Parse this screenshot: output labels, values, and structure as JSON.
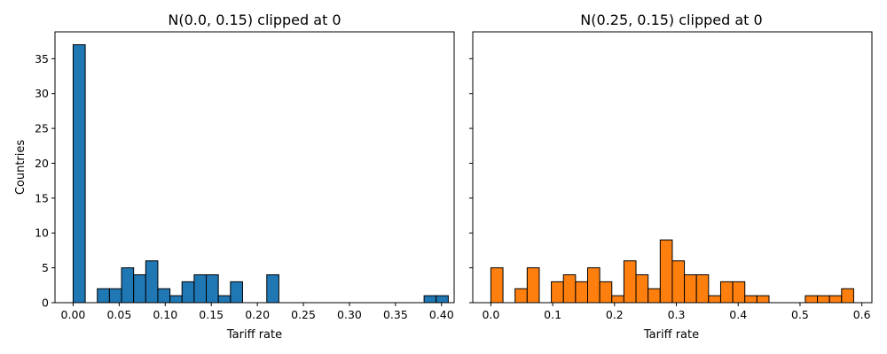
{
  "chart_data": [
    {
      "type": "bar",
      "title": "N(0.0, 0.15) clipped at 0",
      "xlabel": "Tariff rate",
      "ylabel": "Countries",
      "color": "#1f77b4",
      "edge_color": "#000000",
      "xlim": [
        -0.0197,
        0.4137
      ],
      "ylim": [
        0,
        38.85
      ],
      "xticks": [
        0.0,
        0.05,
        0.1,
        0.15,
        0.2,
        0.25,
        0.3,
        0.35,
        0.4
      ],
      "xtick_labels": [
        "0.00",
        "0.05",
        "0.10",
        "0.15",
        "0.20",
        "0.25",
        "0.30",
        "0.35",
        "0.40"
      ],
      "yticks": [
        0,
        5,
        10,
        15,
        20,
        25,
        30,
        35
      ],
      "ytick_labels": [
        "0",
        "5",
        "10",
        "15",
        "20",
        "25",
        "30",
        "35"
      ],
      "bin_start": 0.0,
      "bin_width": 0.01314,
      "values": [
        37,
        0,
        2,
        2,
        5,
        4,
        6,
        2,
        1,
        3,
        4,
        4,
        1,
        3,
        0,
        0,
        4,
        0,
        0,
        0,
        0,
        0,
        0,
        0,
        0,
        0,
        0,
        0,
        0,
        1,
        1
      ]
    },
    {
      "type": "bar",
      "title": "N(0.25, 0.15) clipped at 0",
      "xlabel": "Tariff rate",
      "ylabel": "",
      "color": "#ff7f0e",
      "edge_color": "#000000",
      "xlim": [
        -0.0293,
        0.6163
      ],
      "ylim": [
        0,
        38.85
      ],
      "xticks": [
        0.0,
        0.1,
        0.2,
        0.3,
        0.4,
        0.5,
        0.6
      ],
      "xtick_labels": [
        "0.0",
        "0.1",
        "0.2",
        "0.3",
        "0.4",
        "0.5",
        "0.6"
      ],
      "yticks": [
        0,
        5,
        10,
        15,
        20,
        25,
        30,
        35
      ],
      "ytick_labels": [],
      "bin_start": 0.0,
      "bin_width": 0.01956,
      "values": [
        5,
        0,
        2,
        5,
        0,
        3,
        4,
        3,
        5,
        3,
        1,
        6,
        4,
        2,
        9,
        6,
        4,
        4,
        1,
        3,
        3,
        1,
        1,
        0,
        0,
        0,
        1,
        1,
        1,
        2
      ]
    }
  ]
}
